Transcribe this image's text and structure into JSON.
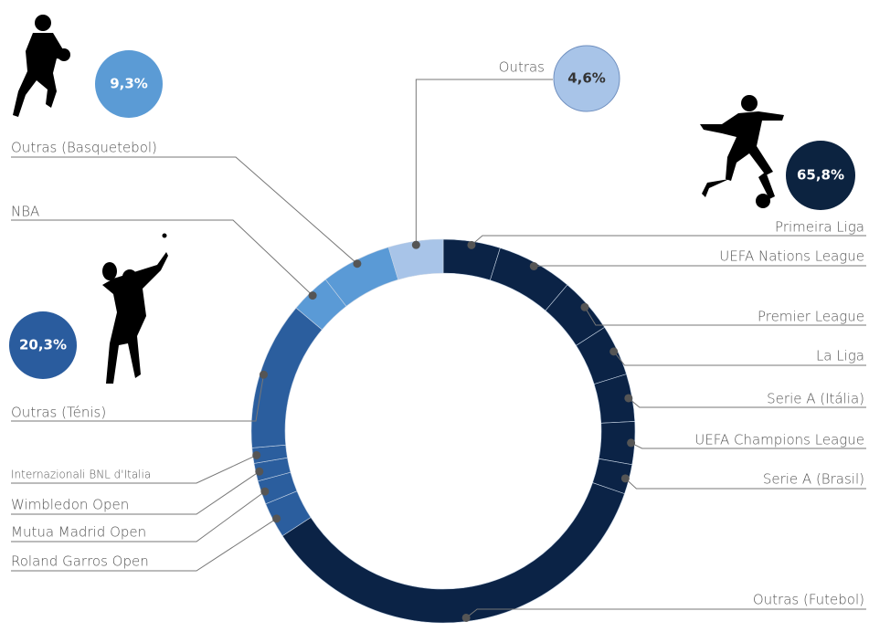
{
  "chart_data": {
    "type": "donut",
    "categories": [
      "Primeira Liga",
      "UEFA Nations League",
      "Premier League",
      "La Liga",
      "Serie A (Itália)",
      "UEFA Champions League",
      "Serie A (Brasil)",
      "Outras (Futebol)",
      "Roland Garros Open",
      "Mutua Madrid Open",
      "Wimbledon Open",
      "Internazionali BNL d'Italia",
      "Outras (Ténis)",
      "NBA",
      "Outras (Basquetebol)",
      "Outras"
    ],
    "values": [
      4.8,
      6.4,
      4.7,
      4.3,
      4.0,
      3.6,
      2.5,
      35.5,
      3.0,
      2.0,
      1.5,
      1.3,
      12.5,
      3.4,
      5.9,
      4.6
    ],
    "colors": [
      "#0b2346",
      "#0b2346",
      "#0b2346",
      "#0b2346",
      "#0b2346",
      "#0b2346",
      "#0b2346",
      "#0b2346",
      "#2b5e9e",
      "#2b5e9e",
      "#2b5e9e",
      "#2b5e9e",
      "#2b5e9e",
      "#5a9ad6",
      "#5a9ad6",
      "#a8c4e8"
    ],
    "group_values": [
      65.8,
      20.3,
      9.3,
      4.6
    ],
    "group_value_labels": [
      "65,8%",
      "20,3%",
      "9,3%",
      "4,6%"
    ],
    "group_colors": [
      "#0c2340",
      "#2a5c9e",
      "#5b9bd5",
      "#a8c4e8"
    ]
  }
}
